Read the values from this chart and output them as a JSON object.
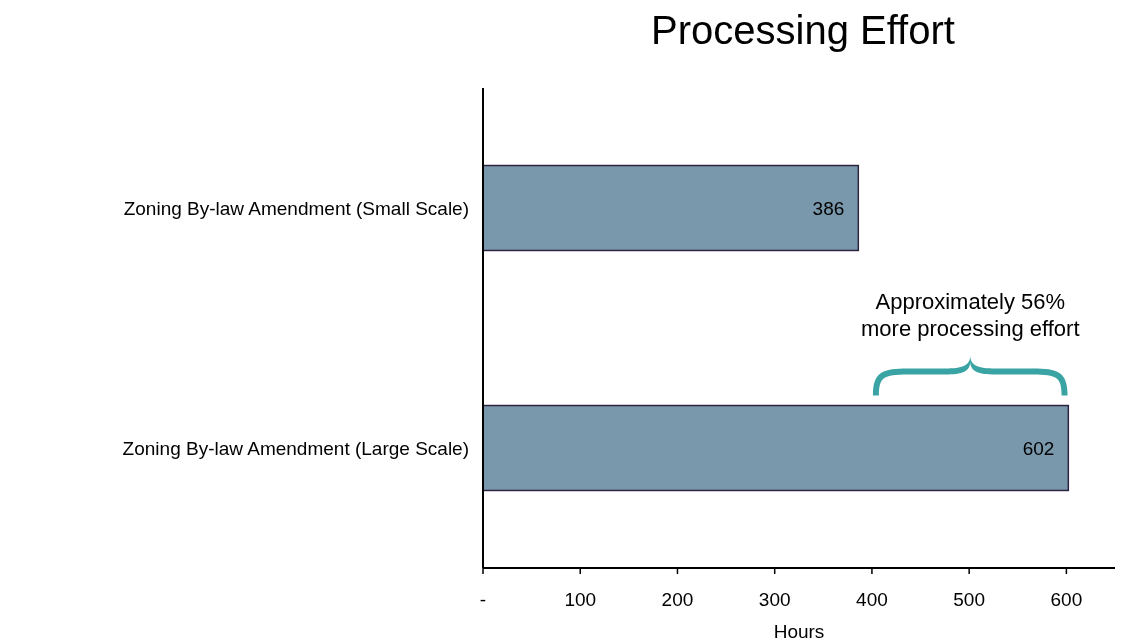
{
  "chart_data": {
    "type": "bar",
    "title": "Processing Effort",
    "xlabel": "Hours",
    "orientation": "horizontal",
    "categories": [
      "Zoning By-law Amendment (Small Scale)",
      "Zoning By-law Amendment (Large Scale)"
    ],
    "values": [
      386,
      602
    ],
    "color": "#7a98ac",
    "data_labels": true,
    "xlim": [
      0,
      650
    ],
    "xticks": [
      {
        "value": 0,
        "label": "-"
      },
      100,
      200,
      300,
      400,
      500,
      600
    ],
    "annotations": [
      "Approximately 56%\nmore processing effort"
    ]
  }
}
